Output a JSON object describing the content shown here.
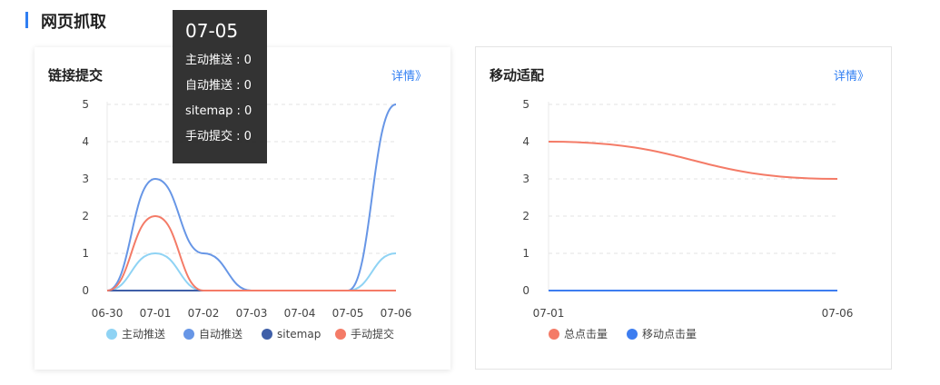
{
  "section": {
    "title": "网页抓取"
  },
  "cards": {
    "left": {
      "title": "链接提交",
      "detail": "详情》"
    },
    "right": {
      "title": "移动适配",
      "detail": "详情》"
    }
  },
  "tooltip": {
    "title": "07-05",
    "rows": [
      "主动推送 : 0",
      "自动推送 : 0",
      "sitemap : 0",
      "手动提交 : 0"
    ]
  },
  "chart_data": [
    {
      "type": "line",
      "title": "链接提交",
      "smooth": true,
      "categories": [
        "06-30",
        "07-01",
        "07-02",
        "07-03",
        "07-04",
        "07-05",
        "07-06"
      ],
      "ylim": [
        0,
        5
      ],
      "yticks": [
        0,
        1,
        2,
        3,
        4,
        5
      ],
      "grid": true,
      "legend": "bottom",
      "series": [
        {
          "name": "主动推送",
          "color": "#8fd3f4",
          "values": [
            0,
            1,
            0,
            0,
            0,
            0,
            1
          ]
        },
        {
          "name": "自动推送",
          "color": "#6796e6",
          "values": [
            0,
            3,
            1,
            0,
            0,
            0,
            5
          ]
        },
        {
          "name": "sitemap",
          "color": "#3f5fa8",
          "values": [
            0,
            0,
            0,
            0,
            0,
            0,
            0
          ]
        },
        {
          "name": "手动提交",
          "color": "#f47b67",
          "values": [
            0,
            2,
            0,
            0,
            0,
            0,
            0
          ]
        }
      ]
    },
    {
      "type": "line",
      "title": "移动适配",
      "smooth": true,
      "categories": [
        "07-01",
        "07-06"
      ],
      "ylim": [
        0,
        5
      ],
      "yticks": [
        0,
        1,
        2,
        3,
        4,
        5
      ],
      "grid": true,
      "legend": "bottom",
      "series": [
        {
          "name": "总点击量",
          "color": "#f47b67",
          "values": [
            4,
            3
          ]
        },
        {
          "name": "移动点击量",
          "color": "#3d7df0",
          "values": [
            0,
            0
          ]
        }
      ]
    }
  ]
}
